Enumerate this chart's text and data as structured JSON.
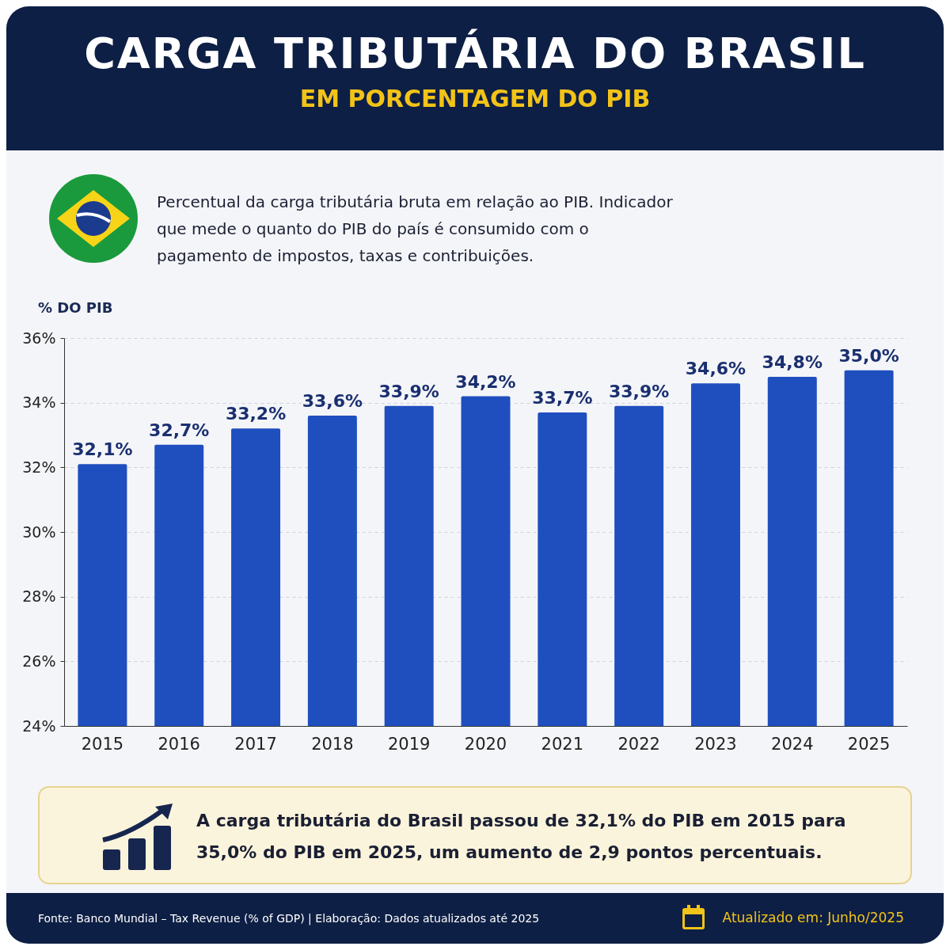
{
  "chart_data": {
    "type": "bar",
    "title": "CARGA TRIBUTÁRIA DO BRASIL",
    "subtitle": "EM PORCENTAGEM DO PIB",
    "ylabel": "% DO PIB",
    "categories": [
      "2015",
      "2016",
      "2017",
      "2018",
      "2019",
      "2020",
      "2021",
      "2022",
      "2023",
      "2024",
      "2025"
    ],
    "values": [
      32.1,
      32.7,
      33.2,
      33.6,
      33.9,
      34.2,
      33.7,
      33.9,
      34.6,
      34.8,
      35.0
    ],
    "value_labels": [
      "32,1%",
      "32,7%",
      "33,2%",
      "33,6%",
      "33,9%",
      "34,2%",
      "33,7%",
      "33,9%",
      "34,6%",
      "34,8%",
      "35,0%"
    ],
    "color": "#1f4fbf",
    "ylim": [
      24,
      36
    ],
    "yticks": [
      {
        "value": 24,
        "label": "24%"
      },
      {
        "value": 26,
        "label": "26%"
      },
      {
        "value": 28,
        "label": "28%"
      },
      {
        "value": 30,
        "label": "30%"
      },
      {
        "value": 32,
        "label": "32%"
      },
      {
        "value": 34,
        "label": "34%"
      },
      {
        "value": 36,
        "label": "36%"
      }
    ],
    "grid": "y",
    "annotations": [
      "Percentual da carga tributária bruta em relação ao PIB. Indicador que mede o quanto do PIB do país é consumido com o pagamento de impostos, taxas e contribuições.",
      "A carga tributária do Brasil passou de 32,1% do PIB em 2015 para 35,0% do PIB em 2025, um aumento de 2,9 pontos percentuais.",
      "Fonte: Banco Mundial – Tax Revenue (% of GDP)  |  Elaboração: Dados atualizados até 2025",
      "Atualizado em: Junho/2025"
    ]
  }
}
